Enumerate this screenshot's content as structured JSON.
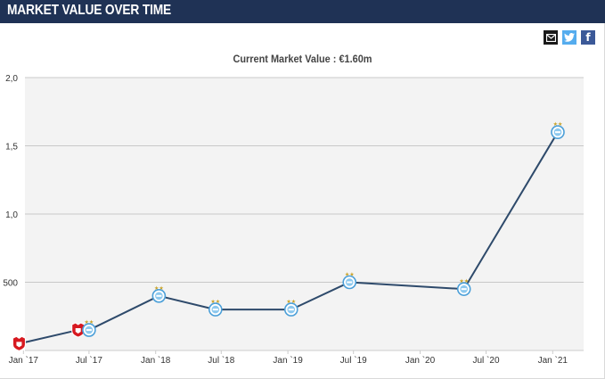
{
  "header": {
    "title": "MARKET VALUE OVER TIME"
  },
  "share": {
    "email_icon": "email-icon",
    "twitter_icon": "twitter-icon",
    "facebook_icon": "facebook-icon",
    "facebook_glyph": "f"
  },
  "chart_data": {
    "type": "line",
    "title": "Current Market Value : €1.60m",
    "xlabel": "",
    "ylabel": "",
    "y_ticks": [
      "2,0",
      "1,5",
      "1,0",
      "500"
    ],
    "x_ticks": [
      "Jan `17",
      "Jul `17",
      "Jan `18",
      "Jul `18",
      "Jan `19",
      "Jul `19",
      "Jan `20",
      "Jul `20",
      "Jan `21"
    ],
    "grid": true,
    "legend": "none",
    "line_color": "#2e4a6b",
    "grid_color": "#c8c8c8",
    "plot_background": "#f3f3f3",
    "points": [
      {
        "x": "2016-12-20",
        "value_k": 50,
        "club": "red-shield-club"
      },
      {
        "x": "2017-06-01",
        "value_k": 150,
        "club": "red-shield-club"
      },
      {
        "x": "2017-07-01",
        "value_k": 150,
        "club": "light-blue-club"
      },
      {
        "x": "2018-01-10",
        "value_k": 400,
        "club": "light-blue-club"
      },
      {
        "x": "2018-06-15",
        "value_k": 300,
        "club": "light-blue-club"
      },
      {
        "x": "2019-01-10",
        "value_k": 300,
        "club": "light-blue-club"
      },
      {
        "x": "2019-06-20",
        "value_k": 500,
        "club": "light-blue-club"
      },
      {
        "x": "2020-05-01",
        "value_k": 450,
        "club": "light-blue-club"
      },
      {
        "x": "2021-01-15",
        "value_k": 1600,
        "club": "light-blue-club"
      }
    ]
  }
}
